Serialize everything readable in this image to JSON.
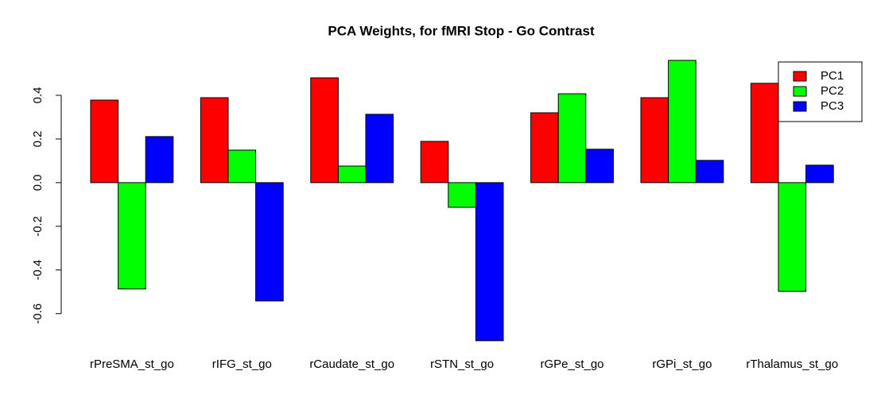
{
  "chart_data": {
    "type": "bar",
    "title": "PCA Weights, for fMRI Stop - Go Contrast",
    "categories": [
      "rPreSMA_st_go",
      "rIFG_st_go",
      "rCaudate_st_go",
      "rSTN_st_go",
      "rGPe_st_go",
      "rGPi_st_go",
      "rThalamus_st_go"
    ],
    "series": [
      {
        "name": "PC1",
        "color": "#ff0000",
        "values": [
          0.378,
          0.389,
          0.48,
          0.189,
          0.32,
          0.389,
          0.455
        ]
      },
      {
        "name": "PC2",
        "color": "#00ff00",
        "values": [
          -0.487,
          0.149,
          0.076,
          -0.113,
          0.407,
          0.56,
          -0.498
        ]
      },
      {
        "name": "PC3",
        "color": "#0000ff",
        "values": [
          0.211,
          -0.542,
          0.313,
          -0.724,
          0.153,
          0.102,
          0.08
        ]
      }
    ],
    "ylim": [
      -0.75,
      0.6
    ],
    "yticks": [
      -0.6,
      -0.4,
      -0.2,
      {
        "value": 0,
        "label": "0.0"
      },
      0.2,
      0.4
    ],
    "legend": "top-right"
  }
}
